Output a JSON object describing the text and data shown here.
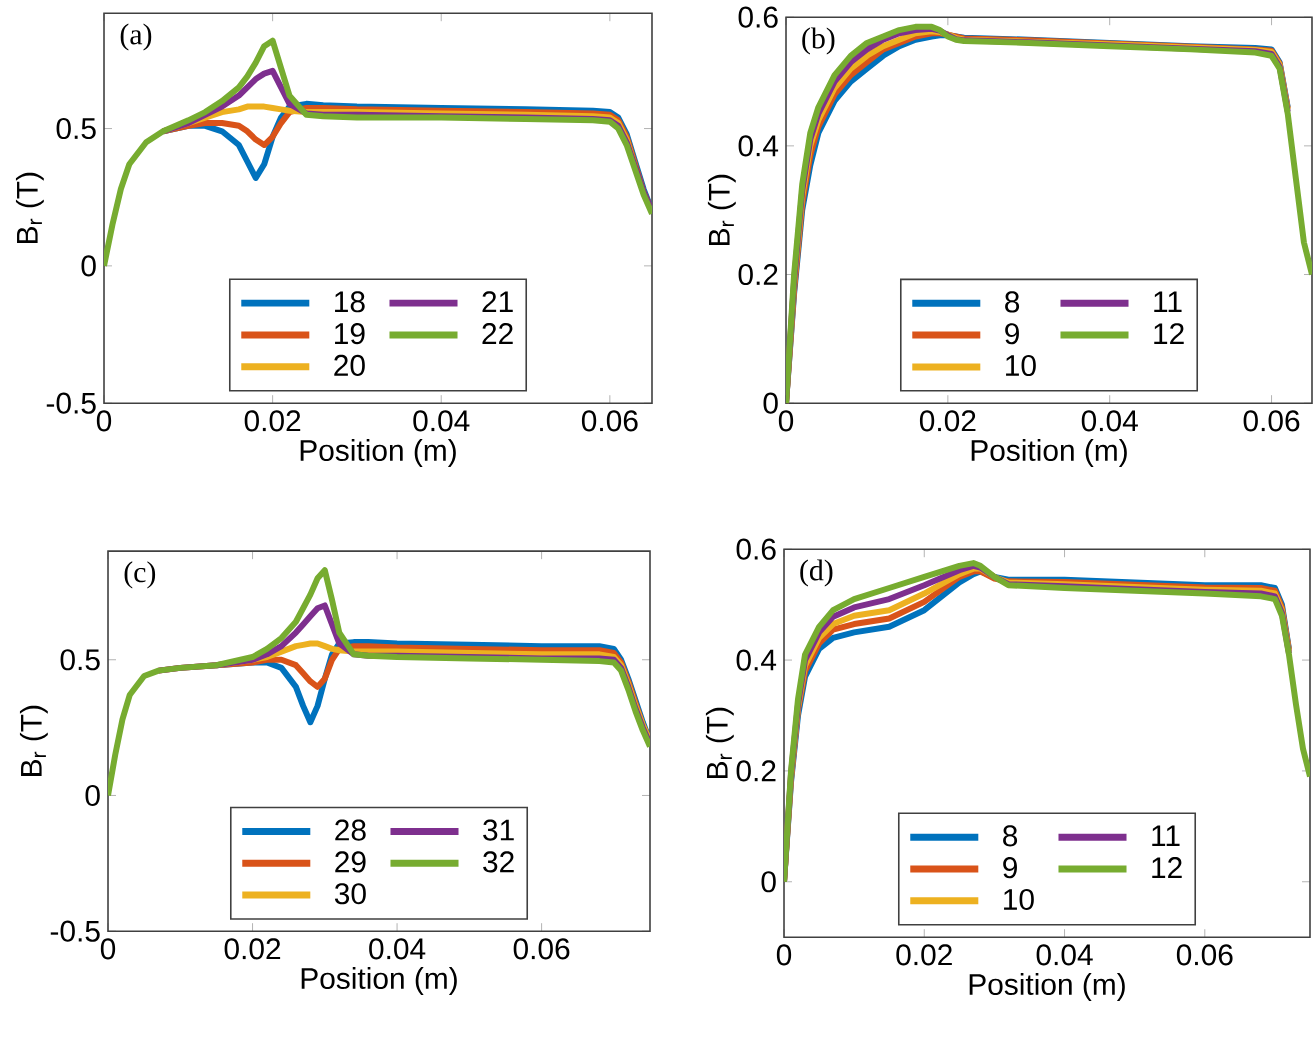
{
  "chart_data": [
    {
      "type": "line",
      "xlabel": "Position (m)",
      "ylabel": "B$_{r}$ (T)",
      "annotations": [
        "(a)"
      ],
      "legend": "bottom",
      "marker": "none",
      "xlim": [
        0,
        0.065
      ],
      "ylim": [
        -0.5,
        0.92
      ],
      "xticks": [
        0,
        0.02,
        0.04,
        0.06
      ],
      "yticks": [
        -0.5,
        0,
        0.5
      ],
      "x": [
        0,
        0.001,
        0.002,
        0.003,
        0.005,
        0.007,
        0.01,
        0.012,
        0.014,
        0.016,
        0.017,
        0.018,
        0.019,
        0.02,
        0.021,
        0.022,
        0.024,
        0.026,
        0.03,
        0.04,
        0.05,
        0.058,
        0.06,
        0.061,
        0.062,
        0.063,
        0.064,
        0.065
      ],
      "series": [
        {
          "name": "18",
          "color": "#0072bd",
          "values": [
            null,
            null,
            null,
            null,
            null,
            0.49,
            0.51,
            0.51,
            0.49,
            0.44,
            0.38,
            0.32,
            0.37,
            0.47,
            0.54,
            0.58,
            0.59,
            0.585,
            0.58,
            0.575,
            0.57,
            0.565,
            0.56,
            0.54,
            0.48,
            0.38,
            0.28,
            0.2
          ]
        },
        {
          "name": "19",
          "color": "#d95319",
          "values": [
            null,
            null,
            null,
            null,
            null,
            0.49,
            0.51,
            0.52,
            0.52,
            0.51,
            0.49,
            0.46,
            0.44,
            0.47,
            0.52,
            0.56,
            0.575,
            0.575,
            0.57,
            0.565,
            0.56,
            0.555,
            0.55,
            0.53,
            0.47,
            0.37,
            0.27,
            0.2
          ]
        },
        {
          "name": "20",
          "color": "#edb120",
          "values": [
            null,
            null,
            null,
            null,
            null,
            0.49,
            0.52,
            0.54,
            0.56,
            0.57,
            0.58,
            0.58,
            0.58,
            0.575,
            0.57,
            0.565,
            0.56,
            0.56,
            0.56,
            0.555,
            0.55,
            0.545,
            0.54,
            0.52,
            0.46,
            0.36,
            null,
            null
          ]
        },
        {
          "name": "21",
          "color": "#7e2f8e",
          "values": [
            null,
            null,
            null,
            null,
            null,
            0.49,
            0.52,
            0.55,
            0.58,
            0.62,
            0.65,
            0.68,
            0.7,
            0.71,
            0.65,
            0.59,
            0.555,
            0.55,
            0.55,
            0.545,
            0.54,
            0.535,
            0.53,
            0.51,
            0.45,
            0.36,
            0.27,
            0.2
          ]
        },
        {
          "name": "22",
          "color": "#77ac30",
          "values": [
            0,
            0.15,
            0.28,
            0.37,
            0.45,
            0.49,
            0.53,
            0.56,
            0.6,
            0.65,
            0.69,
            0.74,
            0.8,
            0.82,
            0.72,
            0.62,
            0.55,
            0.545,
            0.54,
            0.54,
            0.535,
            0.53,
            0.525,
            0.5,
            0.44,
            0.35,
            0.26,
            0.19
          ]
        }
      ]
    },
    {
      "type": "line",
      "xlabel": "Position (m)",
      "ylabel": "B$_{r}$ (T)",
      "annotations": [
        "(b)"
      ],
      "legend": "bottom",
      "marker": "none",
      "xlim": [
        0,
        0.065
      ],
      "ylim": [
        0,
        0.6
      ],
      "xticks": [
        0,
        0.02,
        0.04,
        0.06
      ],
      "yticks": [
        0,
        0.2,
        0.4,
        0.6
      ],
      "x": [
        0,
        0.001,
        0.002,
        0.003,
        0.004,
        0.006,
        0.008,
        0.01,
        0.012,
        0.014,
        0.016,
        0.018,
        0.019,
        0.02,
        0.021,
        0.022,
        0.03,
        0.04,
        0.05,
        0.058,
        0.06,
        0.061,
        0.062,
        0.063,
        0.064,
        0.065
      ],
      "series": [
        {
          "name": "8",
          "color": "#0072bd",
          "values": [
            0,
            0.17,
            0.3,
            0.37,
            0.42,
            0.47,
            0.5,
            0.52,
            0.54,
            0.555,
            0.565,
            0.57,
            0.572,
            0.572,
            0.57,
            0.568,
            0.565,
            0.56,
            0.555,
            0.552,
            0.55,
            0.53,
            0.46,
            null,
            null,
            null
          ]
        },
        {
          "name": "9",
          "color": "#d95319",
          "values": [
            0,
            0.175,
            0.31,
            0.385,
            0.43,
            0.48,
            0.51,
            0.53,
            0.55,
            0.56,
            0.57,
            0.575,
            0.575,
            0.573,
            0.57,
            0.567,
            0.564,
            0.559,
            0.554,
            0.55,
            0.548,
            0.528,
            0.458,
            null,
            null,
            null
          ]
        },
        {
          "name": "10",
          "color": "#edb120",
          "values": [
            0,
            0.185,
            0.32,
            0.4,
            0.44,
            0.49,
            0.52,
            0.54,
            0.555,
            0.565,
            0.575,
            0.578,
            0.577,
            0.573,
            0.568,
            0.565,
            0.562,
            0.558,
            0.553,
            0.549,
            0.546,
            0.526,
            0.456,
            null,
            null,
            null
          ]
        },
        {
          "name": "11",
          "color": "#7e2f8e",
          "values": [
            0,
            0.19,
            0.33,
            0.41,
            0.45,
            0.5,
            0.53,
            0.55,
            0.565,
            0.575,
            0.58,
            0.582,
            0.579,
            0.572,
            0.566,
            0.564,
            0.561,
            0.556,
            0.551,
            0.547,
            0.543,
            0.523,
            0.453,
            null,
            null,
            null
          ]
        },
        {
          "name": "12",
          "color": "#77ac30",
          "values": [
            0,
            0.2,
            0.34,
            0.42,
            0.46,
            0.51,
            0.54,
            0.56,
            0.57,
            0.58,
            0.585,
            0.585,
            0.58,
            0.57,
            0.565,
            0.563,
            0.56,
            0.555,
            0.55,
            0.545,
            0.54,
            0.52,
            0.45,
            0.35,
            0.25,
            0.2
          ]
        }
      ]
    },
    {
      "type": "line",
      "xlabel": "Position (m)",
      "ylabel": "B$_{r}$ (T)",
      "annotations": [
        "(c)"
      ],
      "legend": "bottom",
      "marker": "none",
      "xlim": [
        0,
        0.075
      ],
      "ylim": [
        -0.5,
        0.9
      ],
      "xticks": [
        0,
        0.02,
        0.04,
        0.06
      ],
      "yticks": [
        -0.5,
        0,
        0.5
      ],
      "x": [
        0,
        0.001,
        0.002,
        0.003,
        0.005,
        0.007,
        0.01,
        0.015,
        0.02,
        0.022,
        0.024,
        0.026,
        0.027,
        0.028,
        0.029,
        0.03,
        0.031,
        0.032,
        0.034,
        0.036,
        0.04,
        0.05,
        0.06,
        0.068,
        0.07,
        0.071,
        0.072,
        0.073,
        0.074,
        0.075
      ],
      "series": [
        {
          "name": "28",
          "color": "#0072bd",
          "values": [
            null,
            null,
            null,
            null,
            null,
            null,
            null,
            0.48,
            0.49,
            0.49,
            0.47,
            0.4,
            0.33,
            0.27,
            0.33,
            0.43,
            0.52,
            0.56,
            0.565,
            0.565,
            0.56,
            0.555,
            0.55,
            0.55,
            0.54,
            0.5,
            0.43,
            0.35,
            0.27,
            0.2
          ]
        },
        {
          "name": "29",
          "color": "#d95319",
          "values": [
            null,
            null,
            null,
            null,
            null,
            0.46,
            0.47,
            0.48,
            0.49,
            0.5,
            0.5,
            0.48,
            0.45,
            0.42,
            0.4,
            0.43,
            0.5,
            0.54,
            0.55,
            0.55,
            0.545,
            0.54,
            0.535,
            0.535,
            0.525,
            0.49,
            0.42,
            0.34,
            0.26,
            0.2
          ]
        },
        {
          "name": "30",
          "color": "#edb120",
          "values": [
            null,
            null,
            null,
            null,
            null,
            null,
            null,
            0.48,
            0.5,
            0.51,
            0.53,
            0.55,
            0.555,
            0.56,
            0.56,
            0.55,
            0.54,
            0.535,
            0.53,
            0.53,
            0.53,
            0.525,
            0.52,
            0.52,
            0.51,
            0.48,
            0.41,
            0.33,
            0.26,
            0.2
          ]
        },
        {
          "name": "31",
          "color": "#7e2f8e",
          "values": [
            null,
            null,
            null,
            null,
            null,
            0.46,
            0.47,
            0.48,
            0.5,
            0.52,
            0.55,
            0.6,
            0.63,
            0.66,
            0.69,
            0.7,
            0.63,
            0.56,
            0.52,
            0.515,
            0.515,
            0.51,
            0.505,
            0.505,
            0.5,
            0.47,
            0.4,
            0.32,
            0.25,
            0.19
          ]
        },
        {
          "name": "32",
          "color": "#77ac30",
          "values": [
            0,
            0.15,
            0.28,
            0.37,
            0.44,
            0.46,
            0.47,
            0.48,
            0.51,
            0.54,
            0.58,
            0.64,
            0.69,
            0.74,
            0.8,
            0.83,
            0.72,
            0.6,
            0.52,
            0.515,
            0.51,
            0.505,
            0.5,
            0.495,
            0.49,
            0.46,
            0.39,
            0.31,
            0.24,
            0.18
          ]
        }
      ]
    },
    {
      "type": "line",
      "xlabel": "Position (m)",
      "ylabel": "B$_{r}$ (T)",
      "annotations": [
        "(d)"
      ],
      "legend": "bottom",
      "marker": "none",
      "xlim": [
        0,
        0.075
      ],
      "ylim": [
        -0.1,
        0.6
      ],
      "xticks": [
        0,
        0.02,
        0.04,
        0.06
      ],
      "yticks": [
        0,
        0.2,
        0.4,
        0.6
      ],
      "x": [
        0,
        0.001,
        0.002,
        0.003,
        0.005,
        0.007,
        0.01,
        0.015,
        0.02,
        0.025,
        0.027,
        0.028,
        0.03,
        0.032,
        0.04,
        0.05,
        0.06,
        0.068,
        0.07,
        0.071,
        0.072,
        0.073,
        0.074,
        0.075
      ],
      "series": [
        {
          "name": "8",
          "color": "#0072bd",
          "values": [
            0,
            0.18,
            0.3,
            0.37,
            0.42,
            0.44,
            0.45,
            0.46,
            0.49,
            0.54,
            0.555,
            0.56,
            0.55,
            0.545,
            0.545,
            0.54,
            0.535,
            0.535,
            0.53,
            0.5,
            0.42,
            null,
            null,
            null
          ]
        },
        {
          "name": "9",
          "color": "#d95319",
          "values": [
            0,
            0.185,
            0.31,
            0.38,
            0.43,
            0.455,
            0.465,
            0.475,
            0.505,
            0.55,
            0.56,
            0.56,
            0.547,
            0.542,
            0.541,
            0.536,
            0.531,
            0.53,
            0.525,
            0.495,
            0.418,
            null,
            null,
            null
          ]
        },
        {
          "name": "10",
          "color": "#edb120",
          "values": [
            0,
            0.19,
            0.315,
            0.39,
            0.44,
            0.465,
            0.48,
            0.49,
            0.52,
            0.555,
            0.565,
            0.565,
            0.55,
            0.54,
            0.537,
            0.532,
            0.527,
            0.525,
            0.52,
            0.49,
            0.415,
            null,
            null,
            null
          ]
        },
        {
          "name": "11",
          "color": "#7e2f8e",
          "values": [
            0,
            0.195,
            0.32,
            0.4,
            0.45,
            0.478,
            0.495,
            0.51,
            0.535,
            0.562,
            0.57,
            0.567,
            0.55,
            0.537,
            0.533,
            0.528,
            0.523,
            0.52,
            0.515,
            0.485,
            0.412,
            null,
            null,
            null
          ]
        },
        {
          "name": "12",
          "color": "#77ac30",
          "values": [
            0,
            0.2,
            0.33,
            0.41,
            0.46,
            0.49,
            0.51,
            0.53,
            0.55,
            0.57,
            0.575,
            0.57,
            0.55,
            0.535,
            0.53,
            0.525,
            0.52,
            0.515,
            0.51,
            0.48,
            0.41,
            0.32,
            0.24,
            0.19
          ]
        }
      ]
    }
  ]
}
